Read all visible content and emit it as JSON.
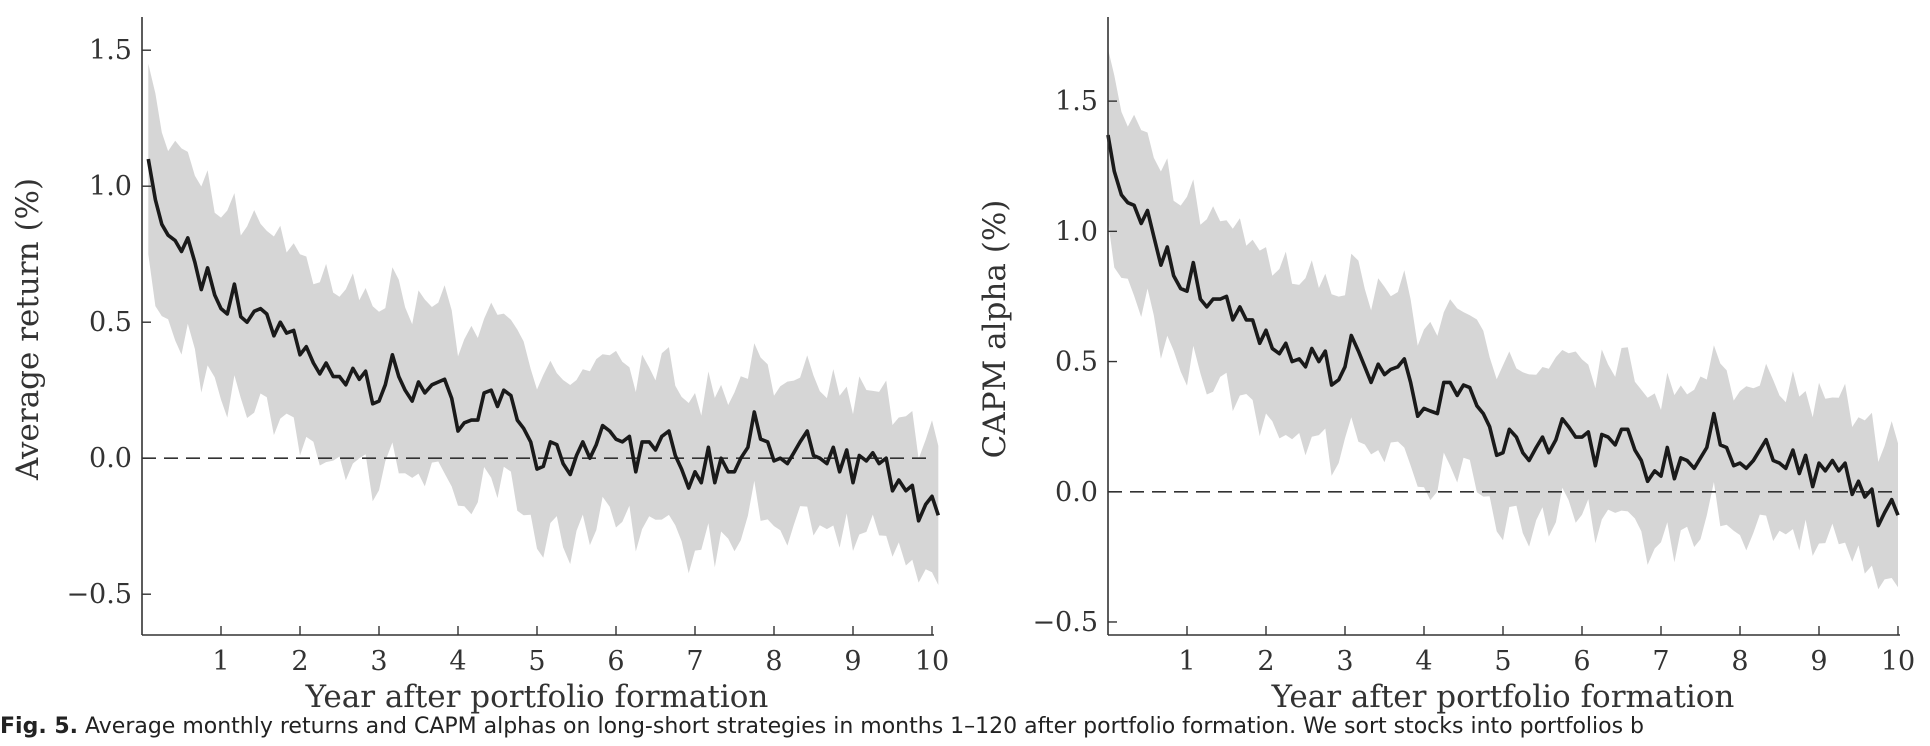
{
  "chart_data": [
    {
      "type": "line",
      "xlabel": "Year after portfolio formation",
      "ylabel": "Average return (%)",
      "xlim": [
        0,
        10
      ],
      "ylim": [
        -0.65,
        1.6
      ],
      "xticks": [
        1,
        2,
        3,
        4,
        5,
        6,
        7,
        8,
        9,
        10
      ],
      "yticks": [
        -0.5,
        0.0,
        0.5,
        1.0,
        1.5
      ],
      "ytick_labels": [
        "−0.5",
        "0.0",
        "0.5",
        "1.0",
        "1.5"
      ],
      "reference_line": {
        "y": 0,
        "style": "dashed"
      },
      "band": "confidence band (gray)",
      "keyframes": [
        [
          0.08,
          1.1
        ],
        [
          0.17,
          0.95
        ],
        [
          0.25,
          0.86
        ],
        [
          0.33,
          0.82
        ],
        [
          0.42,
          0.8
        ],
        [
          0.5,
          0.76
        ],
        [
          0.58,
          0.81
        ],
        [
          0.67,
          0.72
        ],
        [
          0.75,
          0.62
        ],
        [
          0.83,
          0.7
        ],
        [
          0.92,
          0.6
        ],
        [
          1.0,
          0.55
        ],
        [
          1.08,
          0.53
        ],
        [
          1.17,
          0.64
        ],
        [
          1.25,
          0.52
        ],
        [
          1.33,
          0.5
        ],
        [
          1.42,
          0.54
        ],
        [
          1.5,
          0.55
        ],
        [
          1.58,
          0.53
        ],
        [
          1.67,
          0.45
        ],
        [
          1.75,
          0.5
        ],
        [
          1.83,
          0.46
        ],
        [
          1.92,
          0.47
        ],
        [
          2.0,
          0.38
        ],
        [
          2.08,
          0.41
        ],
        [
          2.17,
          0.35
        ],
        [
          2.25,
          0.31
        ],
        [
          2.33,
          0.35
        ],
        [
          2.42,
          0.3
        ],
        [
          2.5,
          0.3
        ],
        [
          2.58,
          0.27
        ],
        [
          2.67,
          0.33
        ],
        [
          2.75,
          0.29
        ],
        [
          2.83,
          0.32
        ],
        [
          2.92,
          0.2
        ],
        [
          3.0,
          0.21
        ],
        [
          3.08,
          0.27
        ],
        [
          3.17,
          0.38
        ],
        [
          3.25,
          0.3
        ],
        [
          3.33,
          0.25
        ],
        [
          3.42,
          0.21
        ],
        [
          3.5,
          0.28
        ],
        [
          3.58,
          0.24
        ],
        [
          3.67,
          0.27
        ],
        [
          3.75,
          0.28
        ],
        [
          3.83,
          0.29
        ],
        [
          3.92,
          0.22
        ],
        [
          4.0,
          0.1
        ],
        [
          4.08,
          0.13
        ],
        [
          4.17,
          0.14
        ],
        [
          4.25,
          0.14
        ],
        [
          4.33,
          0.24
        ],
        [
          4.42,
          0.25
        ],
        [
          4.5,
          0.19
        ],
        [
          4.58,
          0.25
        ],
        [
          4.67,
          0.23
        ],
        [
          4.75,
          0.14
        ],
        [
          4.83,
          0.11
        ],
        [
          4.92,
          0.06
        ],
        [
          5.0,
          -0.04
        ],
        [
          5.08,
          -0.03
        ],
        [
          5.17,
          0.06
        ],
        [
          5.25,
          0.05
        ],
        [
          5.33,
          -0.02
        ],
        [
          5.42,
          -0.06
        ],
        [
          5.5,
          0.01
        ],
        [
          5.58,
          0.06
        ],
        [
          5.67,
          0.0
        ],
        [
          5.75,
          0.05
        ],
        [
          5.83,
          0.12
        ],
        [
          5.92,
          0.1
        ],
        [
          6.0,
          0.07
        ],
        [
          6.08,
          0.06
        ],
        [
          6.17,
          0.08
        ],
        [
          6.25,
          -0.05
        ],
        [
          6.33,
          0.06
        ],
        [
          6.42,
          0.06
        ],
        [
          6.5,
          0.03
        ],
        [
          6.58,
          0.08
        ],
        [
          6.67,
          0.1
        ],
        [
          6.75,
          0.01
        ],
        [
          6.83,
          -0.04
        ],
        [
          6.92,
          -0.11
        ],
        [
          7.0,
          -0.05
        ],
        [
          7.08,
          -0.09
        ],
        [
          7.17,
          0.04
        ],
        [
          7.25,
          -0.09
        ],
        [
          7.33,
          0.0
        ],
        [
          7.42,
          -0.05
        ],
        [
          7.5,
          -0.05
        ],
        [
          7.58,
          0.0
        ],
        [
          7.67,
          0.04
        ],
        [
          7.75,
          0.17
        ],
        [
          7.83,
          0.07
        ],
        [
          7.92,
          0.06
        ],
        [
          8.0,
          -0.01
        ],
        [
          8.08,
          0.0
        ],
        [
          8.17,
          -0.02
        ],
        [
          8.25,
          0.02
        ],
        [
          8.33,
          0.06
        ],
        [
          8.42,
          0.1
        ],
        [
          8.5,
          0.01
        ],
        [
          8.58,
          0.0
        ],
        [
          8.67,
          -0.02
        ],
        [
          8.75,
          0.04
        ],
        [
          8.83,
          -0.05
        ],
        [
          8.92,
          0.03
        ],
        [
          9.0,
          -0.09
        ],
        [
          9.08,
          0.01
        ],
        [
          9.17,
          -0.01
        ],
        [
          9.25,
          0.02
        ],
        [
          9.33,
          -0.02
        ],
        [
          9.42,
          0.0
        ],
        [
          9.5,
          -0.12
        ],
        [
          9.58,
          -0.08
        ],
        [
          9.67,
          -0.12
        ],
        [
          9.75,
          -0.1
        ],
        [
          9.83,
          -0.23
        ],
        [
          9.92,
          -0.17
        ],
        [
          10.0,
          -0.14
        ],
        [
          10.08,
          -0.21
        ]
      ],
      "band_halfwidth": [
        0.35,
        0.25
      ]
    },
    {
      "type": "line",
      "xlabel": "Year after portfolio formation",
      "ylabel": "CAPM alpha (%)",
      "xlim": [
        0,
        10
      ],
      "ylim": [
        -0.55,
        1.8
      ],
      "xticks": [
        1,
        2,
        3,
        4,
        5,
        6,
        7,
        8,
        9,
        10
      ],
      "yticks": [
        -0.5,
        0.0,
        0.5,
        1.0,
        1.5
      ],
      "ytick_labels": [
        "−0.5",
        "0.0",
        "0.5",
        "1.0",
        "1.5"
      ],
      "reference_line": {
        "y": 0,
        "style": "dashed"
      },
      "band": "confidence band (gray)",
      "keyframes": [
        [
          0.0,
          1.37
        ],
        [
          0.08,
          1.23
        ],
        [
          0.17,
          1.14
        ],
        [
          0.25,
          1.11
        ],
        [
          0.33,
          1.1
        ],
        [
          0.42,
          1.03
        ],
        [
          0.5,
          1.08
        ],
        [
          0.58,
          0.98
        ],
        [
          0.67,
          0.87
        ],
        [
          0.75,
          0.94
        ],
        [
          0.83,
          0.83
        ],
        [
          0.92,
          0.78
        ],
        [
          1.0,
          0.77
        ],
        [
          1.08,
          0.88
        ],
        [
          1.17,
          0.74
        ],
        [
          1.25,
          0.71
        ],
        [
          1.33,
          0.74
        ],
        [
          1.42,
          0.74
        ],
        [
          1.5,
          0.75
        ],
        [
          1.58,
          0.66
        ],
        [
          1.67,
          0.71
        ],
        [
          1.75,
          0.66
        ],
        [
          1.83,
          0.66
        ],
        [
          1.92,
          0.57
        ],
        [
          2.0,
          0.62
        ],
        [
          2.08,
          0.55
        ],
        [
          2.17,
          0.53
        ],
        [
          2.25,
          0.57
        ],
        [
          2.33,
          0.5
        ],
        [
          2.42,
          0.51
        ],
        [
          2.5,
          0.48
        ],
        [
          2.58,
          0.55
        ],
        [
          2.67,
          0.5
        ],
        [
          2.75,
          0.54
        ],
        [
          2.83,
          0.41
        ],
        [
          2.92,
          0.43
        ],
        [
          3.0,
          0.48
        ],
        [
          3.08,
          0.6
        ],
        [
          3.17,
          0.54
        ],
        [
          3.25,
          0.48
        ],
        [
          3.33,
          0.42
        ],
        [
          3.42,
          0.49
        ],
        [
          3.5,
          0.45
        ],
        [
          3.58,
          0.47
        ],
        [
          3.67,
          0.48
        ],
        [
          3.75,
          0.51
        ],
        [
          3.83,
          0.42
        ],
        [
          3.92,
          0.29
        ],
        [
          4.0,
          0.32
        ],
        [
          4.08,
          0.31
        ],
        [
          4.17,
          0.3
        ],
        [
          4.25,
          0.42
        ],
        [
          4.33,
          0.42
        ],
        [
          4.42,
          0.37
        ],
        [
          4.5,
          0.41
        ],
        [
          4.58,
          0.4
        ],
        [
          4.67,
          0.33
        ],
        [
          4.75,
          0.3
        ],
        [
          4.83,
          0.25
        ],
        [
          4.92,
          0.14
        ],
        [
          5.0,
          0.15
        ],
        [
          5.08,
          0.24
        ],
        [
          5.17,
          0.21
        ],
        [
          5.25,
          0.15
        ],
        [
          5.33,
          0.12
        ],
        [
          5.42,
          0.17
        ],
        [
          5.5,
          0.21
        ],
        [
          5.58,
          0.15
        ],
        [
          5.67,
          0.2
        ],
        [
          5.75,
          0.28
        ],
        [
          5.83,
          0.25
        ],
        [
          5.92,
          0.21
        ],
        [
          6.0,
          0.21
        ],
        [
          6.08,
          0.23
        ],
        [
          6.17,
          0.1
        ],
        [
          6.25,
          0.22
        ],
        [
          6.33,
          0.21
        ],
        [
          6.42,
          0.18
        ],
        [
          6.5,
          0.24
        ],
        [
          6.58,
          0.24
        ],
        [
          6.67,
          0.16
        ],
        [
          6.75,
          0.12
        ],
        [
          6.83,
          0.04
        ],
        [
          6.92,
          0.08
        ],
        [
          7.0,
          0.06
        ],
        [
          7.08,
          0.17
        ],
        [
          7.17,
          0.05
        ],
        [
          7.25,
          0.13
        ],
        [
          7.33,
          0.12
        ],
        [
          7.42,
          0.09
        ],
        [
          7.5,
          0.13
        ],
        [
          7.58,
          0.17
        ],
        [
          7.67,
          0.3
        ],
        [
          7.75,
          0.18
        ],
        [
          7.83,
          0.17
        ],
        [
          7.92,
          0.1
        ],
        [
          8.0,
          0.11
        ],
        [
          8.08,
          0.09
        ],
        [
          8.17,
          0.12
        ],
        [
          8.25,
          0.16
        ],
        [
          8.33,
          0.2
        ],
        [
          8.42,
          0.12
        ],
        [
          8.5,
          0.11
        ],
        [
          8.58,
          0.09
        ],
        [
          8.67,
          0.16
        ],
        [
          8.75,
          0.07
        ],
        [
          8.83,
          0.14
        ],
        [
          8.92,
          0.02
        ],
        [
          9.0,
          0.11
        ],
        [
          9.08,
          0.08
        ],
        [
          9.17,
          0.12
        ],
        [
          9.25,
          0.08
        ],
        [
          9.33,
          0.11
        ],
        [
          9.42,
          -0.01
        ],
        [
          9.5,
          0.04
        ],
        [
          9.58,
          -0.02
        ],
        [
          9.67,
          0.01
        ],
        [
          9.75,
          -0.13
        ],
        [
          9.83,
          -0.08
        ],
        [
          9.92,
          -0.03
        ],
        [
          10.0,
          -0.09
        ]
      ],
      "band_halfwidth": [
        0.33,
        0.27
      ]
    }
  ],
  "caption": {
    "label": "Fig. 5.",
    "text": "Average monthly returns and CAPM alphas on long-short strategies in months 1–120 after portfolio formation. We sort stocks into portfolios b"
  }
}
